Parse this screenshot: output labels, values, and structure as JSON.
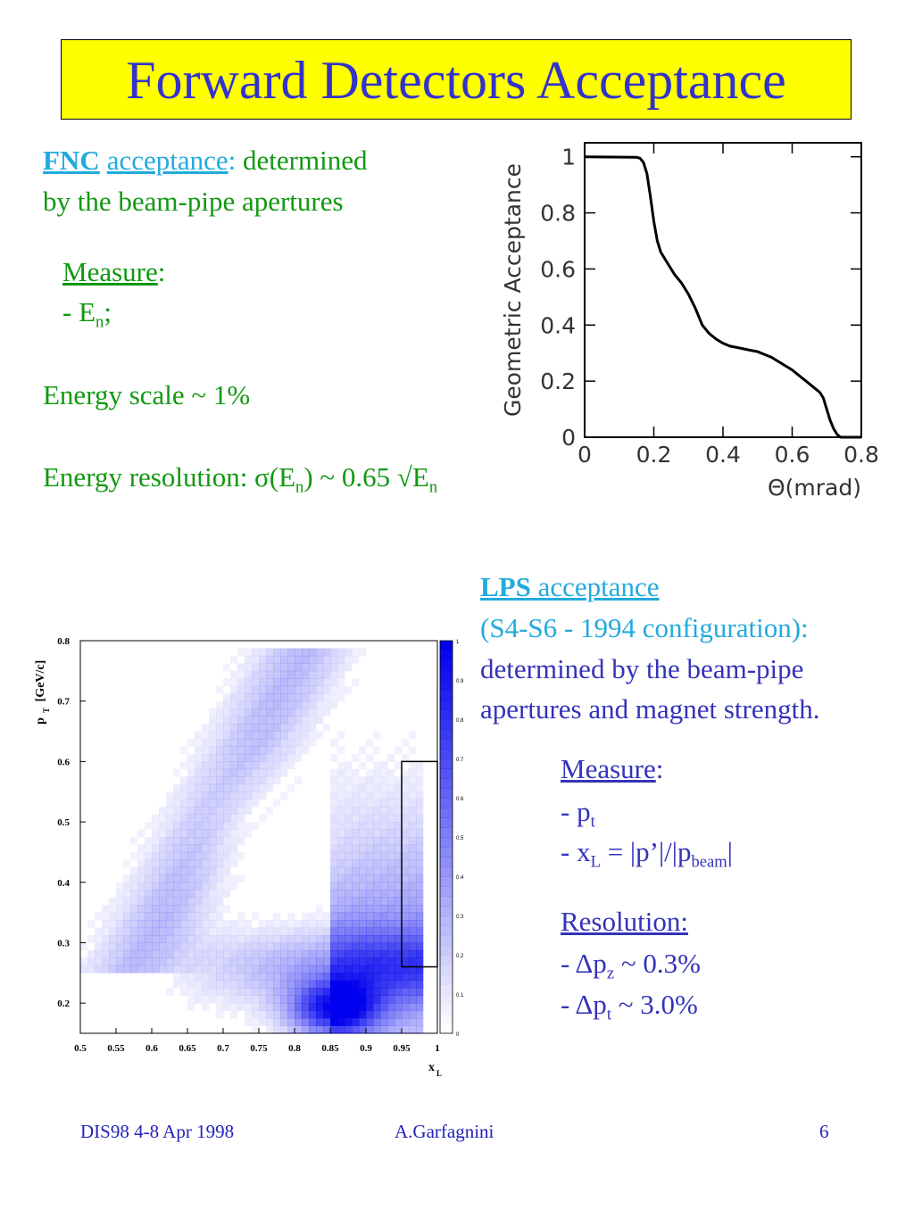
{
  "title": "Forward Detectors Acceptance",
  "fnc": {
    "label": "FNC",
    "acceptance": "acceptance",
    "colon": ":",
    "rest_line1": " determined",
    "line2": "by the beam-pipe apertures",
    "measure": "Measure",
    "measure_colon": ":",
    "en_prefix": "- E",
    "en_sub": "n",
    "en_suffix": ";",
    "energy_scale": "Energy scale ~ 1%",
    "res_prefix": "Energy resolution:  σ(E",
    "res_sub1": "n",
    "res_mid": ") ~ 0.65 √E",
    "res_sub2": "n"
  },
  "lps": {
    "label": "LPS",
    "acceptance": " acceptance",
    "config": "(S4-S6 - 1994 configuration):",
    "line3": "determined by the beam-pipe",
    "line4": "apertures and magnet strength.",
    "measure": "Measure",
    "measure_colon": ":",
    "pt_prefix": "- p",
    "pt_sub": "t",
    "xl_prefix": "- x",
    "xl_sub": "L",
    "xl_mid": " = |p’|/|p",
    "xl_sub2": "beam",
    "xl_suffix": "|",
    "resolution": "Resolution:",
    "dpz_prefix": "- Δp",
    "dpz_sub": "z",
    "dpz_suffix": " ~ 0.3%",
    "dpt_prefix": "- Δp",
    "dpt_sub": "t",
    "dpt_suffix": " ~ 3.0%"
  },
  "footer": {
    "left": "DIS98 4-8 Apr 1998",
    "center": "A.Garfagnini",
    "page": "6"
  },
  "chart_data": [
    {
      "type": "line",
      "xlabel": "Θ(mrad)",
      "ylabel": "Geometric Acceptance",
      "xlim": [
        0,
        0.8
      ],
      "ylim": [
        0,
        1.05
      ],
      "xticks": [
        "0",
        "0.2",
        "0.4",
        "0.6",
        "0.8"
      ],
      "yticks": [
        "0",
        "0.2",
        "0.4",
        "0.6",
        "0.8",
        "1"
      ],
      "series": [
        {
          "x": [
            0,
            0.15,
            0.16,
            0.17,
            0.18,
            0.19,
            0.2,
            0.21,
            0.22,
            0.24,
            0.26,
            0.28,
            0.3,
            0.32,
            0.34,
            0.36,
            0.38,
            0.4,
            0.42,
            0.44,
            0.46,
            0.48,
            0.5,
            0.52,
            0.54,
            0.56,
            0.58,
            0.6,
            0.62,
            0.64,
            0.66,
            0.68,
            0.69,
            0.7,
            0.71,
            0.72,
            0.73,
            0.74,
            0.8
          ],
          "y": [
            1,
            0.998,
            0.995,
            0.98,
            0.94,
            0.86,
            0.77,
            0.7,
            0.66,
            0.62,
            0.58,
            0.55,
            0.51,
            0.46,
            0.4,
            0.37,
            0.35,
            0.335,
            0.325,
            0.32,
            0.315,
            0.31,
            0.305,
            0.295,
            0.285,
            0.27,
            0.255,
            0.24,
            0.22,
            0.2,
            0.18,
            0.16,
            0.14,
            0.1,
            0.06,
            0.03,
            0.01,
            0,
            0
          ]
        }
      ]
    },
    {
      "type": "heatmap",
      "xlabel": "x",
      "xlabel_sub": "L",
      "ylabel": "p",
      "ylabel_sub": "T",
      "ylabel_unit": " [GeV/c]",
      "xlim": [
        0.5,
        1.0
      ],
      "ylim": [
        0.15,
        0.8
      ],
      "xticks": [
        "0.5",
        "0.55",
        "0.6",
        "0.65",
        "0.7",
        "0.75",
        "0.8",
        "0.85",
        "0.9",
        "0.95",
        "1"
      ],
      "yticks": [
        "0.2",
        "0.3",
        "0.4",
        "0.5",
        "0.6",
        "0.7",
        "0.8"
      ],
      "colorbar_ticks": [
        "0",
        "0.1",
        "0.2",
        "0.3",
        "0.4",
        "0.5",
        "0.6",
        "0.7",
        "0.8",
        "0.9",
        "1"
      ],
      "selection_box": {
        "x": [
          0.95,
          1.0
        ],
        "y": [
          0.26,
          0.6
        ]
      },
      "color": "#0000ee"
    }
  ]
}
